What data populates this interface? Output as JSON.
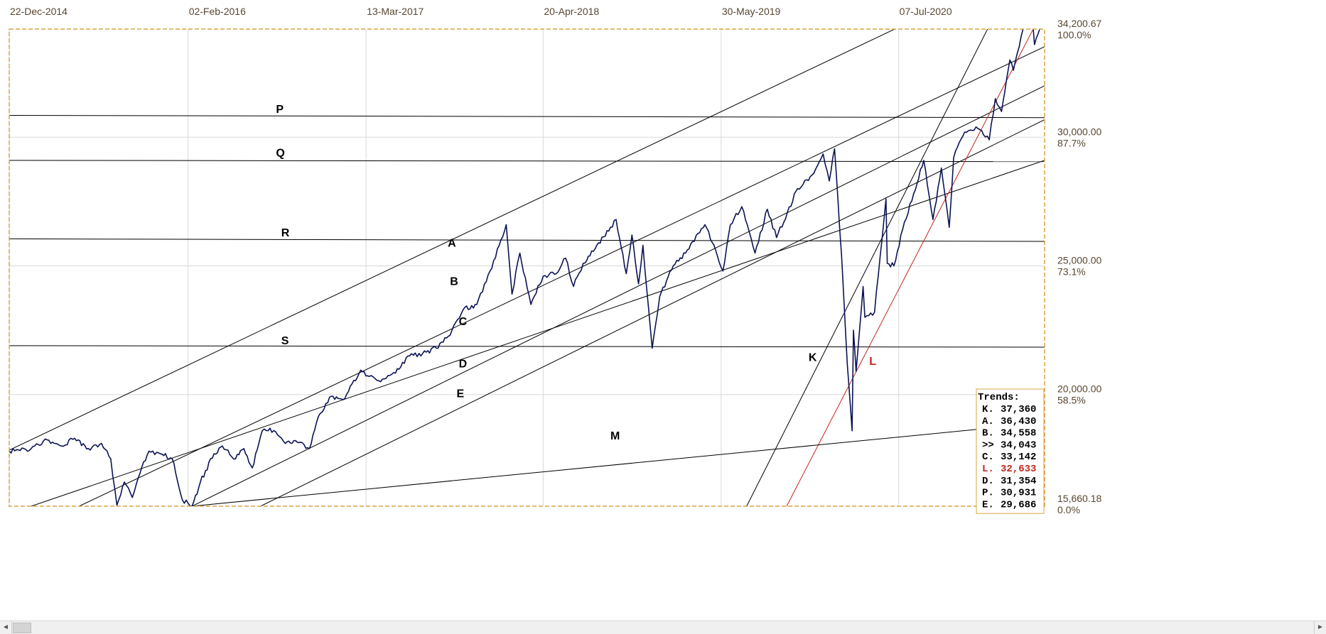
{
  "chart_data": {
    "type": "line",
    "title": "",
    "x_axis": {
      "type": "date",
      "range": [
        "2014-12-22",
        "2021-06-04"
      ],
      "tick_labels": [
        "22-Dec-2014",
        "02-Feb-2016",
        "13-Mar-2017",
        "20-Apr-2018",
        "30-May-2019",
        "07-Jul-2020"
      ]
    },
    "y_axis": {
      "range": [
        15660.18,
        34200.67
      ],
      "position": "right",
      "grid_values": [
        20000,
        25000,
        30000
      ],
      "labels": [
        {
          "value": 34200.67,
          "text": "34,200.67",
          "pct": "100.0%"
        },
        {
          "value": 30000,
          "text": "30,000.00",
          "pct": "87.7%"
        },
        {
          "value": 25000,
          "text": "25,000.00",
          "pct": "73.1%"
        },
        {
          "value": 20000,
          "text": "20,000.00",
          "pct": "58.5%"
        },
        {
          "value": 15660.18,
          "text": "15,660.18",
          "pct": "0.0%"
        }
      ]
    },
    "grid": true,
    "series": [
      {
        "color": "#0b1354",
        "points": [
          [
            "2014-12-22",
            17800
          ],
          [
            "2015-02-10",
            17900
          ],
          [
            "2015-03-10",
            18200
          ],
          [
            "2015-04-20",
            18000
          ],
          [
            "2015-05-20",
            18300
          ],
          [
            "2015-06-20",
            17900
          ],
          [
            "2015-07-20",
            18100
          ],
          [
            "2015-08-10",
            17500
          ],
          [
            "2015-08-24",
            15700
          ],
          [
            "2015-09-10",
            16600
          ],
          [
            "2015-09-28",
            16000
          ],
          [
            "2015-10-20",
            17200
          ],
          [
            "2015-11-05",
            17800
          ],
          [
            "2015-12-01",
            17700
          ],
          [
            "2015-12-28",
            17500
          ],
          [
            "2016-01-20",
            15900
          ],
          [
            "2016-02-11",
            15660
          ],
          [
            "2016-03-01",
            16600
          ],
          [
            "2016-04-01",
            17700
          ],
          [
            "2016-04-20",
            18000
          ],
          [
            "2016-05-20",
            17500
          ],
          [
            "2016-06-08",
            17900
          ],
          [
            "2016-06-27",
            17150
          ],
          [
            "2016-07-20",
            18600
          ],
          [
            "2016-08-15",
            18600
          ],
          [
            "2016-09-10",
            18100
          ],
          [
            "2016-10-15",
            18150
          ],
          [
            "2016-11-04",
            17900
          ],
          [
            "2016-11-20",
            18900
          ],
          [
            "2016-12-20",
            19900
          ],
          [
            "2017-01-20",
            19800
          ],
          [
            "2017-03-01",
            20950
          ],
          [
            "2017-03-20",
            20700
          ],
          [
            "2017-04-15",
            20500
          ],
          [
            "2017-05-15",
            20850
          ],
          [
            "2017-06-20",
            21500
          ],
          [
            "2017-07-20",
            21600
          ],
          [
            "2017-08-20",
            21800
          ],
          [
            "2017-09-20",
            22300
          ],
          [
            "2017-10-20",
            23300
          ],
          [
            "2017-11-20",
            23500
          ],
          [
            "2017-12-20",
            24800
          ],
          [
            "2018-01-10",
            25800
          ],
          [
            "2018-01-26",
            26600
          ],
          [
            "2018-02-08",
            23900
          ],
          [
            "2018-02-26",
            25500
          ],
          [
            "2018-03-23",
            23500
          ],
          [
            "2018-04-20",
            24600
          ],
          [
            "2018-05-20",
            24700
          ],
          [
            "2018-06-10",
            25300
          ],
          [
            "2018-06-28",
            24200
          ],
          [
            "2018-07-20",
            25100
          ],
          [
            "2018-08-20",
            25800
          ],
          [
            "2018-09-20",
            26500
          ],
          [
            "2018-10-03",
            26800
          ],
          [
            "2018-10-26",
            24700
          ],
          [
            "2018-11-08",
            26200
          ],
          [
            "2018-11-23",
            24300
          ],
          [
            "2018-12-03",
            25800
          ],
          [
            "2018-12-24",
            21800
          ],
          [
            "2019-01-10",
            23800
          ],
          [
            "2019-02-10",
            25000
          ],
          [
            "2019-03-10",
            25500
          ],
          [
            "2019-04-23",
            26600
          ],
          [
            "2019-05-10",
            25900
          ],
          [
            "2019-06-03",
            24800
          ],
          [
            "2019-06-20",
            26600
          ],
          [
            "2019-07-16",
            27300
          ],
          [
            "2019-08-15",
            25500
          ],
          [
            "2019-09-12",
            27200
          ],
          [
            "2019-10-03",
            26100
          ],
          [
            "2019-10-28",
            27100
          ],
          [
            "2019-11-20",
            28000
          ],
          [
            "2019-12-27",
            28600
          ],
          [
            "2020-01-17",
            29350
          ],
          [
            "2020-01-31",
            28300
          ],
          [
            "2020-02-12",
            29550
          ],
          [
            "2020-02-28",
            25400
          ],
          [
            "2020-03-12",
            21200
          ],
          [
            "2020-03-23",
            18590
          ],
          [
            "2020-03-26",
            22500
          ],
          [
            "2020-04-01",
            20900
          ],
          [
            "2020-04-17",
            24200
          ],
          [
            "2020-04-21",
            23000
          ],
          [
            "2020-05-13",
            23200
          ],
          [
            "2020-06-08",
            27600
          ],
          [
            "2020-06-11",
            25100
          ],
          [
            "2020-06-26",
            25000
          ],
          [
            "2020-07-20",
            26700
          ],
          [
            "2020-08-10",
            27800
          ],
          [
            "2020-09-02",
            29100
          ],
          [
            "2020-09-23",
            26800
          ],
          [
            "2020-10-12",
            28800
          ],
          [
            "2020-10-30",
            26500
          ],
          [
            "2020-11-09",
            29200
          ],
          [
            "2020-12-04",
            30200
          ],
          [
            "2020-12-30",
            30400
          ],
          [
            "2021-01-29",
            29900
          ],
          [
            "2021-02-12",
            31500
          ],
          [
            "2021-02-26",
            31000
          ],
          [
            "2021-03-17",
            33000
          ],
          [
            "2021-03-25",
            32600
          ],
          [
            "2021-04-16",
            34200
          ],
          [
            "2021-05-07",
            34800
          ],
          [
            "2021-05-12",
            33600
          ],
          [
            "2021-05-28",
            34500
          ]
        ]
      }
    ],
    "trendlines": [
      {
        "label": "P",
        "color": "#000000",
        "points": [
          [
            "2014-12-22",
            30850
          ],
          [
            "2021-06-04",
            30760
          ]
        ]
      },
      {
        "label": "Q",
        "color": "#000000",
        "points": [
          [
            "2014-12-22",
            29100
          ],
          [
            "2021-06-04",
            29050
          ]
        ]
      },
      {
        "label": "R",
        "color": "#000000",
        "points": [
          [
            "2014-12-22",
            26050
          ],
          [
            "2021-06-04",
            25950
          ]
        ]
      },
      {
        "label": "S",
        "color": "#000000",
        "points": [
          [
            "2014-12-22",
            21900
          ],
          [
            "2021-06-04",
            21840
          ]
        ]
      },
      {
        "label": "A",
        "color": "#000000",
        "points": [
          [
            "2014-12-22",
            17840
          ],
          [
            "2020-07-10",
            34300
          ]
        ]
      },
      {
        "label": "B",
        "color": "#000000",
        "points": [
          [
            "2015-05-30",
            15660
          ],
          [
            "2021-06-04",
            33520
          ]
        ]
      },
      {
        "label": "C",
        "color": "#000000",
        "points": [
          [
            "2016-02-11",
            15660
          ],
          [
            "2021-06-04",
            32000
          ]
        ]
      },
      {
        "label": "D",
        "color": "#000000",
        "points": [
          [
            "2016-07-16",
            15660
          ],
          [
            "2021-06-04",
            30680
          ]
        ]
      },
      {
        "label": "E",
        "color": "#000000",
        "points": [
          [
            "2015-02-10",
            15660
          ],
          [
            "2021-06-04",
            29100
          ]
        ]
      },
      {
        "label": "K",
        "color": "#000000",
        "points": [
          [
            "2019-07-27",
            15660
          ],
          [
            "2021-01-28",
            34300
          ]
        ]
      },
      {
        "label": "L",
        "color": "#c0261c",
        "points": [
          [
            "2019-10-26",
            15660
          ],
          [
            "2021-05-12",
            34300
          ]
        ]
      },
      {
        "label": "M",
        "color": "#000000",
        "points": [
          [
            "2016-02-11",
            15660
          ],
          [
            "2021-05-10",
            18860
          ]
        ]
      }
    ],
    "annotations": [
      {
        "text": "P",
        "x": "2016-08-20",
        "y": 30950
      },
      {
        "text": "Q",
        "x": "2016-08-20",
        "y": 29250
      },
      {
        "text": "R",
        "x": "2016-09-01",
        "y": 26150
      },
      {
        "text": "S",
        "x": "2016-09-01",
        "y": 21950
      },
      {
        "text": "A",
        "x": "2017-09-15",
        "y": 25750
      },
      {
        "text": "B",
        "x": "2017-09-20",
        "y": 24250
      },
      {
        "text": "C",
        "x": "2017-10-10",
        "y": 22700
      },
      {
        "text": "D",
        "x": "2017-10-10",
        "y": 21050
      },
      {
        "text": "E",
        "x": "2017-10-05",
        "y": 19900
      },
      {
        "text": "K",
        "x": "2019-12-15",
        "y": 21300
      },
      {
        "text": "L",
        "x": "2020-05-01",
        "y": 21150
      },
      {
        "text": "M",
        "x": "2018-09-20",
        "y": 18250
      }
    ],
    "legend": {
      "title": "Trends:",
      "placement": "bottom-right",
      "entries": [
        {
          "label": "K.",
          "value": "37,360",
          "color": "#000000"
        },
        {
          "label": "A.",
          "value": "36,430",
          "color": "#000000"
        },
        {
          "label": "B.",
          "value": "34,558",
          "color": "#000000"
        },
        {
          "label": ">>",
          "value": "34,043",
          "color": "#000000"
        },
        {
          "label": "C.",
          "value": "33,142",
          "color": "#000000"
        },
        {
          "label": "L.",
          "value": "32,633",
          "color": "#c0261c"
        },
        {
          "label": "D.",
          "value": "31,354",
          "color": "#000000"
        },
        {
          "label": "P.",
          "value": "30,931",
          "color": "#000000"
        },
        {
          "label": "E.",
          "value": "29,686",
          "color": "#000000"
        }
      ]
    }
  },
  "scrollbar": {
    "left_arrow": "◄",
    "right_arrow": "►"
  }
}
